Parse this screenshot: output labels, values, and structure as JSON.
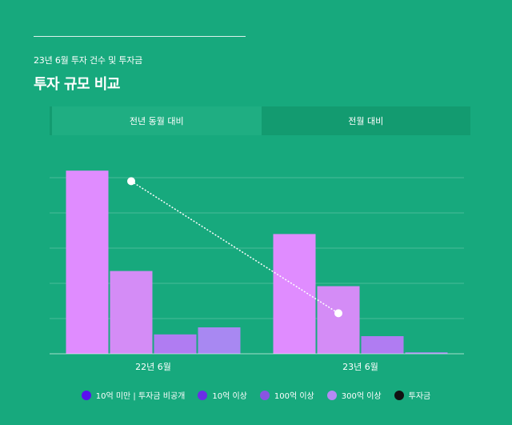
{
  "header": {
    "subtitle": "23년 6월 투자 건수 및 투자금",
    "title": "투자 규모 비교"
  },
  "tabs": [
    {
      "label": "전년 동월 대비",
      "active": true
    },
    {
      "label": "전월 대비",
      "active": false
    }
  ],
  "chart_data": {
    "type": "bar",
    "categories": [
      "22년 6월",
      "23년 6월"
    ],
    "series": [
      {
        "name": "10억 미만 | 투자금 비공개",
        "color": "#5a10f0",
        "bar_color": "#e08cff",
        "values": [
          52,
          34
        ]
      },
      {
        "name": "10억 이상",
        "color": "#6a2ee6",
        "bar_color": "#d48cf6",
        "values": [
          23.5,
          19.2
        ]
      },
      {
        "name": "100억 이상",
        "color": "#8a54e2",
        "bar_color": "#b07cf2",
        "values": [
          5.5,
          5
        ]
      },
      {
        "name": "300억 이상",
        "color": "#b48af4",
        "bar_color": "#a888f2",
        "values": [
          7.5,
          0.4
        ]
      }
    ],
    "line": {
      "name": "투자금",
      "color": "#111111",
      "values": [
        49,
        11.5
      ]
    },
    "ylim": [
      0,
      50
    ],
    "gridlines": [
      0,
      10,
      20,
      30,
      40,
      50
    ],
    "grid": true,
    "legend_position": "bottom"
  }
}
